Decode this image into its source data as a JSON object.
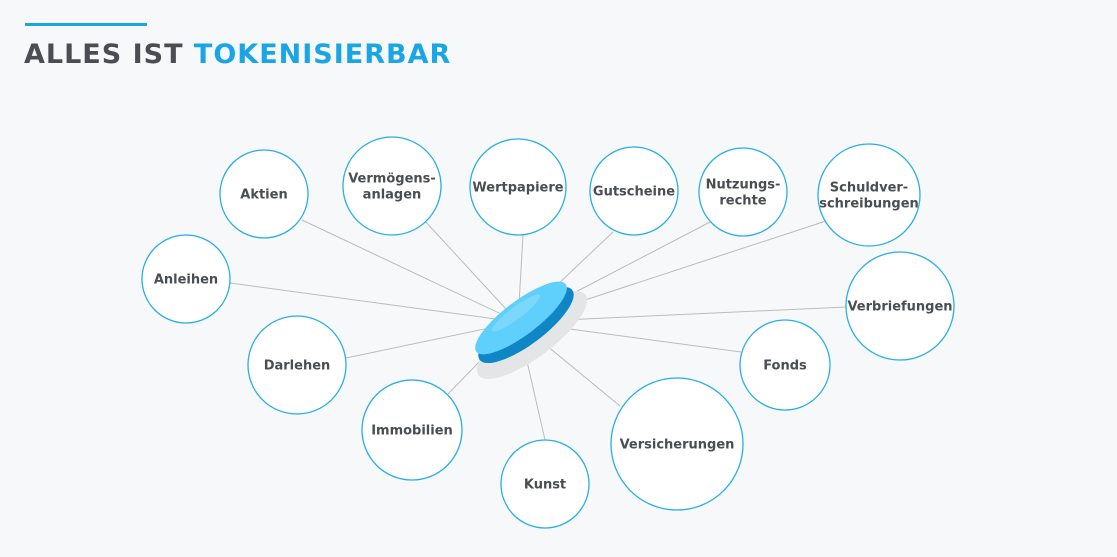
{
  "title": {
    "part1": "ALLES IST",
    "part2": "TOKENISIERBAR"
  },
  "colors": {
    "accent": "#1aa6e4",
    "text": "#4a4d52",
    "circle_stroke": "#29aee6",
    "line": "#b9bcbf",
    "token_top": "#5fd0fb",
    "token_side": "#0f86c6"
  },
  "center": {
    "icon": "token-coin-icon"
  },
  "nodes": [
    {
      "id": "aktien",
      "lines": [
        "Aktien"
      ]
    },
    {
      "id": "vermoegensanlagen",
      "lines": [
        "Vermögens-",
        "anlagen"
      ]
    },
    {
      "id": "wertpapiere",
      "lines": [
        "Wertpapiere"
      ]
    },
    {
      "id": "gutscheine",
      "lines": [
        "Gutscheine"
      ]
    },
    {
      "id": "nutzungsrechte",
      "lines": [
        "Nutzungs-",
        "rechte"
      ]
    },
    {
      "id": "schuldverschreibungen",
      "lines": [
        "Schuldver-",
        "schreibungen"
      ]
    },
    {
      "id": "anleihen",
      "lines": [
        "Anleihen"
      ]
    },
    {
      "id": "verbriefungen",
      "lines": [
        "Verbriefungen"
      ]
    },
    {
      "id": "darlehen",
      "lines": [
        "Darlehen"
      ]
    },
    {
      "id": "fonds",
      "lines": [
        "Fonds"
      ]
    },
    {
      "id": "immobilien",
      "lines": [
        "Immobilien"
      ]
    },
    {
      "id": "kunst",
      "lines": [
        "Kunst"
      ]
    },
    {
      "id": "versicherungen",
      "lines": [
        "Versicherungen"
      ]
    }
  ]
}
